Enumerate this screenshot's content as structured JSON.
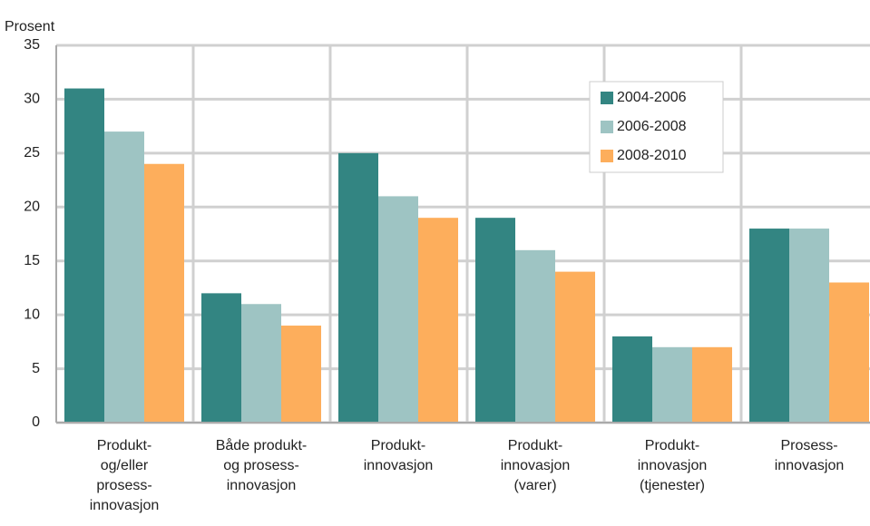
{
  "chart_data": {
    "type": "bar",
    "y_label": "Prosent",
    "categories": [
      "Produkt-\nog/eller\nprosess-\ninnovasjon",
      "Både produkt-\nog prosess-\ninnovasjon",
      "Produkt-\ninnovasjon",
      "Produkt-\ninnovasjon\n(varer)",
      "Produkt-\ninnovasjon\n(tjenester)",
      "Prosess-\ninnovasjon"
    ],
    "series": [
      {
        "name": "2004-2006",
        "color": "#338582",
        "values": [
          31,
          12,
          25,
          19,
          8,
          18
        ]
      },
      {
        "name": "2006-2008",
        "color": "#9ec4c3",
        "values": [
          27,
          11,
          21,
          16,
          7,
          18
        ]
      },
      {
        "name": "2008-2010",
        "color": "#fdae5c",
        "values": [
          24,
          9,
          19,
          14,
          7,
          13
        ]
      }
    ],
    "ylim": [
      0,
      35
    ],
    "yticks": [
      0,
      5,
      10,
      15,
      20,
      25,
      30,
      35
    ],
    "grid": true,
    "legend": "upper right"
  }
}
